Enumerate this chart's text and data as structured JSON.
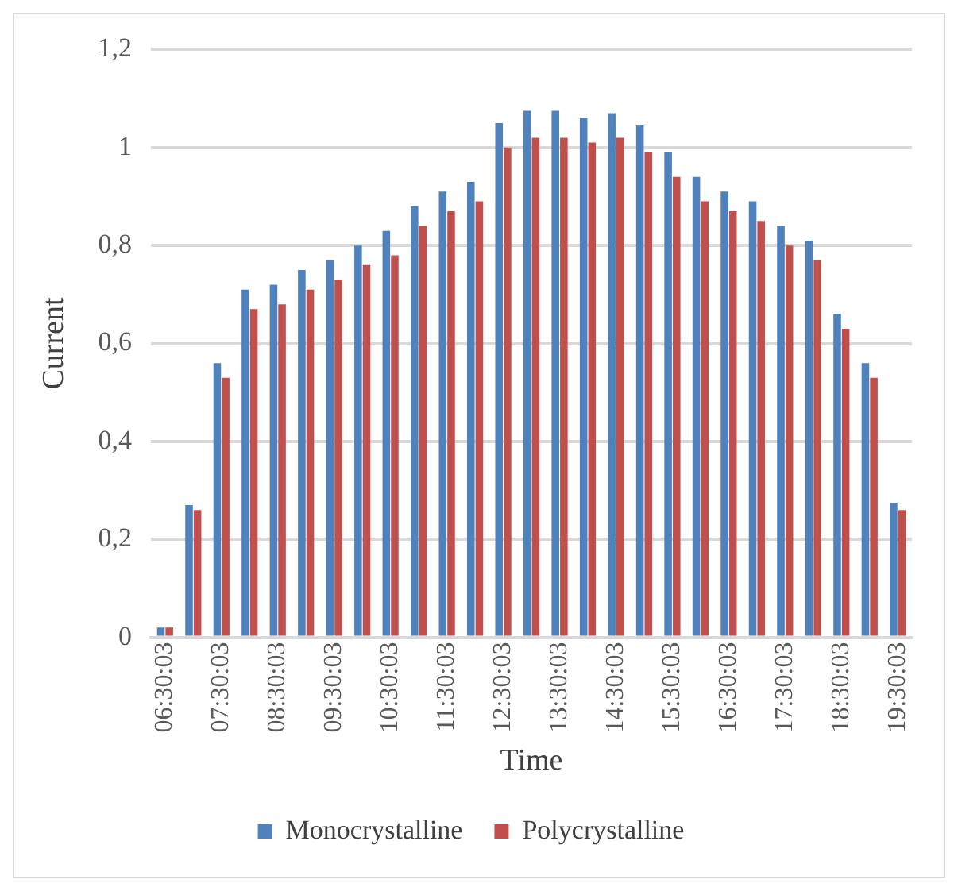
{
  "chart_data": {
    "type": "bar",
    "xlabel": "Time",
    "ylabel": "Current",
    "categories": [
      "06:30:03",
      null,
      "07:30:03",
      null,
      "08:30:03",
      null,
      "09:30:03",
      null,
      "10:30:03",
      null,
      "11:30:03",
      null,
      "12:30:03",
      null,
      "13:30:03",
      null,
      "14:30:03",
      null,
      "15:30:03",
      null,
      "16:30:03",
      null,
      "17:30:03",
      null,
      "18:30:03",
      null,
      "19:30:03"
    ],
    "series": [
      {
        "name": "Monocrystalline",
        "color": "#4f81bd",
        "values": [
          0.02,
          0.27,
          0.56,
          0.71,
          0.72,
          0.75,
          0.77,
          0.8,
          0.83,
          0.88,
          0.91,
          0.93,
          1.05,
          1.075,
          1.075,
          1.06,
          1.07,
          1.045,
          0.99,
          0.94,
          0.91,
          0.89,
          0.84,
          0.81,
          0.66,
          0.56,
          0.275
        ]
      },
      {
        "name": "Polycrystalline",
        "color": "#c0504d",
        "values": [
          0.02,
          0.26,
          0.53,
          0.67,
          0.68,
          0.71,
          0.73,
          0.76,
          0.78,
          0.84,
          0.87,
          0.89,
          1.0,
          1.02,
          1.02,
          1.01,
          1.02,
          0.99,
          0.94,
          0.89,
          0.87,
          0.85,
          0.8,
          0.77,
          0.63,
          0.53,
          0.26
        ]
      }
    ],
    "ylim": [
      0,
      1.2
    ],
    "yticks": [
      0,
      {
        "value": 0.2,
        "label": "0,2"
      },
      {
        "value": 0.4,
        "label": "0,4"
      },
      {
        "value": 0.6,
        "label": "0,6"
      },
      {
        "value": 0.8,
        "label": "0,8"
      },
      1,
      {
        "value": 1.2,
        "label": "1,2"
      }
    ],
    "grid": "y",
    "legend": "bottom"
  }
}
